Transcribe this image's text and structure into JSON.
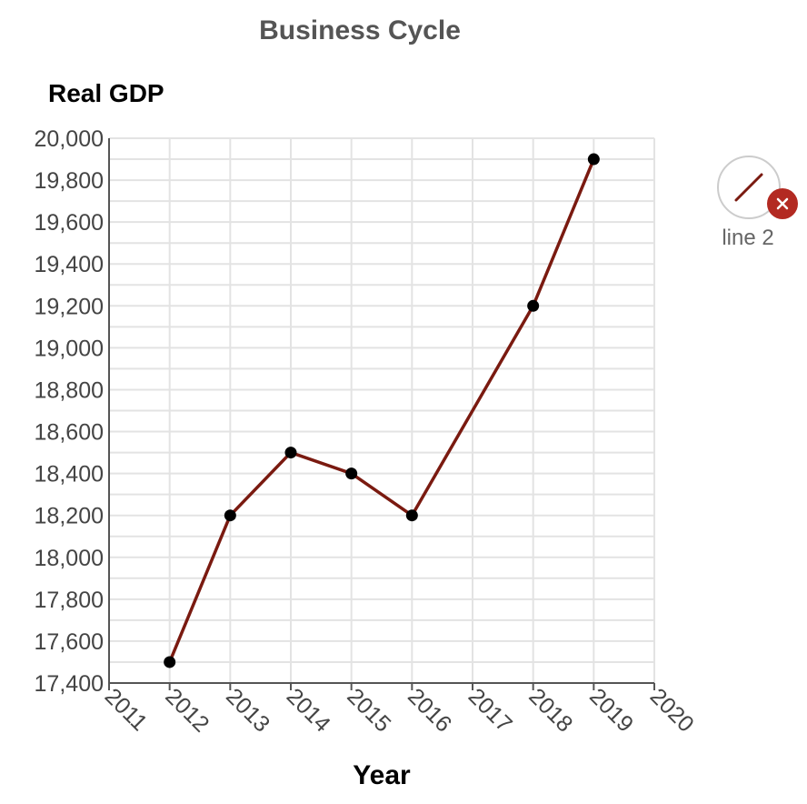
{
  "chart_data": {
    "type": "line",
    "title": "Business Cycle",
    "ylabel": "Real GDP",
    "xlabel": "Year",
    "x": [
      2012,
      2013,
      2014,
      2015,
      2016,
      2018,
      2019
    ],
    "series": [
      {
        "name": "line 2",
        "values": [
          17500,
          18200,
          18500,
          18400,
          18200,
          19200,
          19900
        ]
      }
    ],
    "xlim": [
      2011,
      2020
    ],
    "ylim": [
      17400,
      20000
    ],
    "x_ticks": [
      2011,
      2012,
      2013,
      2014,
      2015,
      2016,
      2017,
      2018,
      2019,
      2020
    ],
    "y_ticks": [
      "17,400",
      "17,600",
      "17,800",
      "18,000",
      "18,200",
      "18,400",
      "18,600",
      "18,800",
      "19,000",
      "19,200",
      "19,400",
      "19,600",
      "19,800",
      "20,000"
    ],
    "grid": true,
    "legend_position": "top-right",
    "colors": {
      "line": "#7a1a10",
      "marker": "#000000",
      "grid": "#e3e3e3",
      "remove_badge": "#b32a22"
    }
  },
  "legend": {
    "label": "line 2",
    "remove_icon": "close-icon"
  }
}
